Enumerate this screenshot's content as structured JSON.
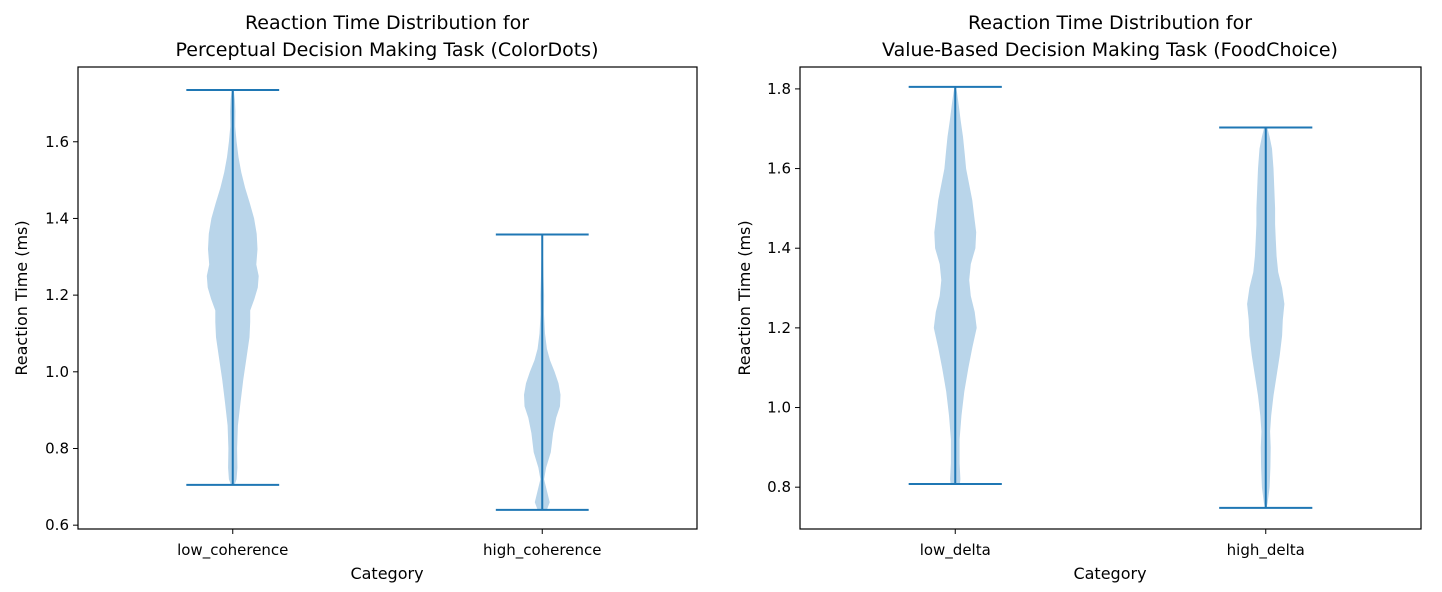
{
  "chart_data": [
    {
      "type": "violin",
      "title_line1": "Reaction Time Distribution for",
      "title_line2": "Perceptual Decision Making Task (ColorDots)",
      "xlabel": "Category",
      "ylabel": "Reaction Time (ms)",
      "categories": [
        "low_coherence",
        "high_coherence"
      ],
      "ylim": [
        0.59,
        1.795
      ],
      "yticks": [
        0.6,
        0.8,
        1.0,
        1.2,
        1.4,
        1.6
      ],
      "ytick_labels": [
        "0.6",
        "0.8",
        "1.0",
        "1.2",
        "1.4",
        "1.6"
      ],
      "grid": false,
      "colors": {
        "body": "#b9d5ea",
        "line": "#1f77b4"
      },
      "violins": [
        {
          "category": "low_coherence",
          "min": 0.705,
          "max": 1.735,
          "profile": [
            [
              0.705,
              0.012
            ],
            [
              0.72,
              0.025
            ],
            [
              0.75,
              0.03
            ],
            [
              0.8,
              0.028
            ],
            [
              0.86,
              0.033
            ],
            [
              0.92,
              0.05
            ],
            [
              0.98,
              0.068
            ],
            [
              1.04,
              0.09
            ],
            [
              1.09,
              0.108
            ],
            [
              1.13,
              0.113
            ],
            [
              1.16,
              0.113
            ],
            [
              1.19,
              0.14
            ],
            [
              1.22,
              0.162
            ],
            [
              1.25,
              0.168
            ],
            [
              1.28,
              0.152
            ],
            [
              1.32,
              0.16
            ],
            [
              1.36,
              0.155
            ],
            [
              1.4,
              0.138
            ],
            [
              1.44,
              0.11
            ],
            [
              1.48,
              0.08
            ],
            [
              1.52,
              0.055
            ],
            [
              1.56,
              0.037
            ],
            [
              1.6,
              0.025
            ],
            [
              1.64,
              0.016
            ],
            [
              1.68,
              0.017
            ],
            [
              1.71,
              0.014
            ],
            [
              1.735,
              0.006
            ]
          ]
        },
        {
          "category": "high_coherence",
          "min": 0.64,
          "max": 1.358,
          "profile": [
            [
              0.64,
              0.03
            ],
            [
              0.66,
              0.048
            ],
            [
              0.69,
              0.03
            ],
            [
              0.72,
              0.012
            ],
            [
              0.75,
              0.025
            ],
            [
              0.79,
              0.055
            ],
            [
              0.84,
              0.07
            ],
            [
              0.88,
              0.09
            ],
            [
              0.91,
              0.115
            ],
            [
              0.94,
              0.118
            ],
            [
              0.97,
              0.105
            ],
            [
              1.0,
              0.08
            ],
            [
              1.03,
              0.05
            ],
            [
              1.06,
              0.03
            ],
            [
              1.1,
              0.018
            ],
            [
              1.15,
              0.011
            ],
            [
              1.2,
              0.012
            ],
            [
              1.25,
              0.008
            ],
            [
              1.3,
              0.005
            ],
            [
              1.34,
              0.004
            ],
            [
              1.358,
              0.003
            ]
          ]
        }
      ]
    },
    {
      "type": "violin",
      "title_line1": "Reaction Time Distribution for",
      "title_line2": "Value-Based Decision Making Task (FoodChoice)",
      "xlabel": "Category",
      "ylabel": "Reaction Time (ms)",
      "categories": [
        "low_delta",
        "high_delta"
      ],
      "ylim": [
        0.695,
        1.855
      ],
      "yticks": [
        0.8,
        1.0,
        1.2,
        1.4,
        1.6,
        1.8
      ],
      "ytick_labels": [
        "0.8",
        "1.0",
        "1.2",
        "1.4",
        "1.6",
        "1.8"
      ],
      "grid": false,
      "colors": {
        "body": "#b9d5ea",
        "line": "#1f77b4"
      },
      "violins": [
        {
          "category": "low_delta",
          "min": 0.808,
          "max": 1.805,
          "profile": [
            [
              0.808,
              0.03
            ],
            [
              0.82,
              0.033
            ],
            [
              0.86,
              0.028
            ],
            [
              0.92,
              0.028
            ],
            [
              0.98,
              0.04
            ],
            [
              1.04,
              0.058
            ],
            [
              1.1,
              0.085
            ],
            [
              1.15,
              0.11
            ],
            [
              1.2,
              0.138
            ],
            [
              1.24,
              0.125
            ],
            [
              1.28,
              0.1
            ],
            [
              1.32,
              0.09
            ],
            [
              1.36,
              0.1
            ],
            [
              1.4,
              0.13
            ],
            [
              1.44,
              0.135
            ],
            [
              1.48,
              0.122
            ],
            [
              1.52,
              0.11
            ],
            [
              1.56,
              0.09
            ],
            [
              1.6,
              0.07
            ],
            [
              1.64,
              0.06
            ],
            [
              1.68,
              0.05
            ],
            [
              1.72,
              0.035
            ],
            [
              1.76,
              0.022
            ],
            [
              1.79,
              0.012
            ],
            [
              1.805,
              0.005
            ]
          ]
        },
        {
          "category": "high_delta",
          "min": 0.748,
          "max": 1.703,
          "profile": [
            [
              0.748,
              0.005
            ],
            [
              0.76,
              0.012
            ],
            [
              0.8,
              0.025
            ],
            [
              0.85,
              0.03
            ],
            [
              0.9,
              0.032
            ],
            [
              0.94,
              0.028
            ],
            [
              0.98,
              0.035
            ],
            [
              1.03,
              0.05
            ],
            [
              1.08,
              0.07
            ],
            [
              1.13,
              0.09
            ],
            [
              1.18,
              0.105
            ],
            [
              1.22,
              0.11
            ],
            [
              1.26,
              0.12
            ],
            [
              1.3,
              0.105
            ],
            [
              1.34,
              0.08
            ],
            [
              1.38,
              0.07
            ],
            [
              1.42,
              0.065
            ],
            [
              1.46,
              0.06
            ],
            [
              1.5,
              0.06
            ],
            [
              1.55,
              0.055
            ],
            [
              1.6,
              0.05
            ],
            [
              1.65,
              0.04
            ],
            [
              1.68,
              0.025
            ],
            [
              1.703,
              0.01
            ]
          ]
        }
      ]
    }
  ]
}
